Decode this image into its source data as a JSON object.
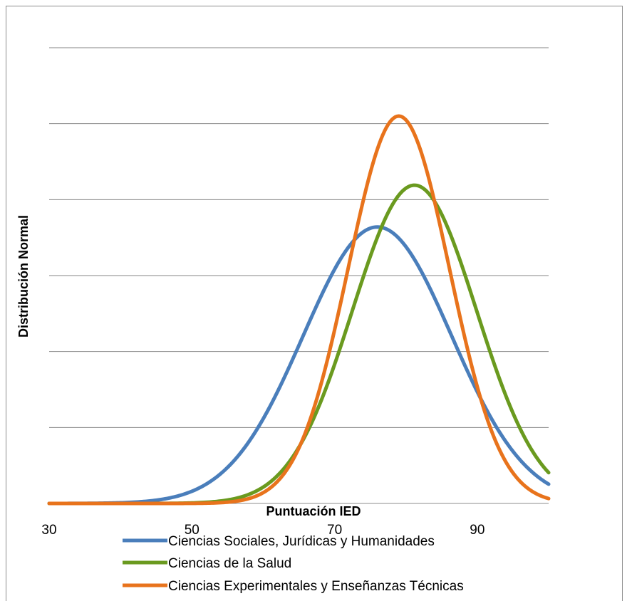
{
  "chart_data": {
    "type": "line",
    "title": "",
    "xlabel": "Puntuación IED",
    "ylabel": "Distribución Normal",
    "xlim": [
      30,
      100
    ],
    "x_ticks": [
      "30",
      "50",
      "70",
      "90"
    ],
    "y_gridline_count": 7,
    "grid": true,
    "legend_position": "bottom",
    "series": [
      {
        "name": "Ciencias Sociales, Jurídicas y Humanidades",
        "color": "#4a7ebb",
        "mean": 76,
        "sd": 10.4,
        "peak_gridlines": 3.64
      },
      {
        "name": "Ciencias de la Salud",
        "color": "#6a9a1f",
        "mean": 81.2,
        "sd": 8.7,
        "peak_gridlines": 4.19
      },
      {
        "name": "Ciencias Experimentales y Enseñanzas Técnicas",
        "color": "#e8731c",
        "mean": 79,
        "sd": 7.1,
        "peak_gridlines": 5.1
      }
    ]
  }
}
